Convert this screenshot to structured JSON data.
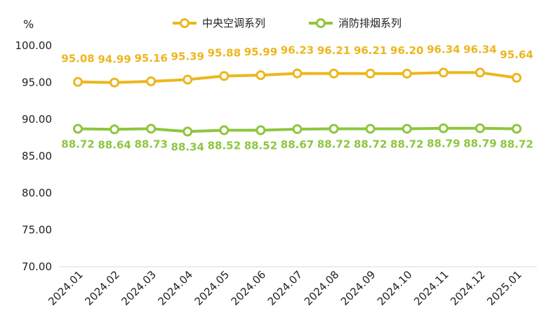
{
  "chart_data": {
    "type": "line",
    "categories": [
      "2024.01",
      "2024.02",
      "2024.03",
      "2024.04",
      "2024.05",
      "2024.06",
      "2024.07",
      "2024.08",
      "2024.09",
      "2024.10",
      "2024.11",
      "2024.12",
      "2025.01"
    ],
    "series": [
      {
        "name": "中央空调系列",
        "color": "#EDB61E",
        "values": [
          95.08,
          94.99,
          95.16,
          95.39,
          95.88,
          95.99,
          96.23,
          96.21,
          96.21,
          96.2,
          96.34,
          96.34,
          95.64
        ],
        "labels": [
          "95.08",
          "94.99",
          "95.16",
          "95.39",
          "95.88",
          "95.99",
          "96.23",
          "96.21",
          "96.21",
          "96.20",
          "96.34",
          "96.34",
          "95.64"
        ]
      },
      {
        "name": "消防排烟系列",
        "color": "#8DC63F",
        "values": [
          88.72,
          88.64,
          88.73,
          88.34,
          88.52,
          88.52,
          88.67,
          88.72,
          88.72,
          88.72,
          88.79,
          88.79,
          88.72
        ],
        "labels": [
          "88.72",
          "88.64",
          "88.73",
          "88.34",
          "88.52",
          "88.52",
          "88.67",
          "88.72",
          "88.72",
          "88.72",
          "88.79",
          "88.79",
          "88.72"
        ]
      }
    ],
    "ylabel": "%",
    "ylim": [
      70,
      100
    ],
    "yticks": [
      "70.00",
      "75.00",
      "80.00",
      "85.00",
      "90.00",
      "95.00",
      "100.00"
    ],
    "legend": "top",
    "grid": false
  }
}
